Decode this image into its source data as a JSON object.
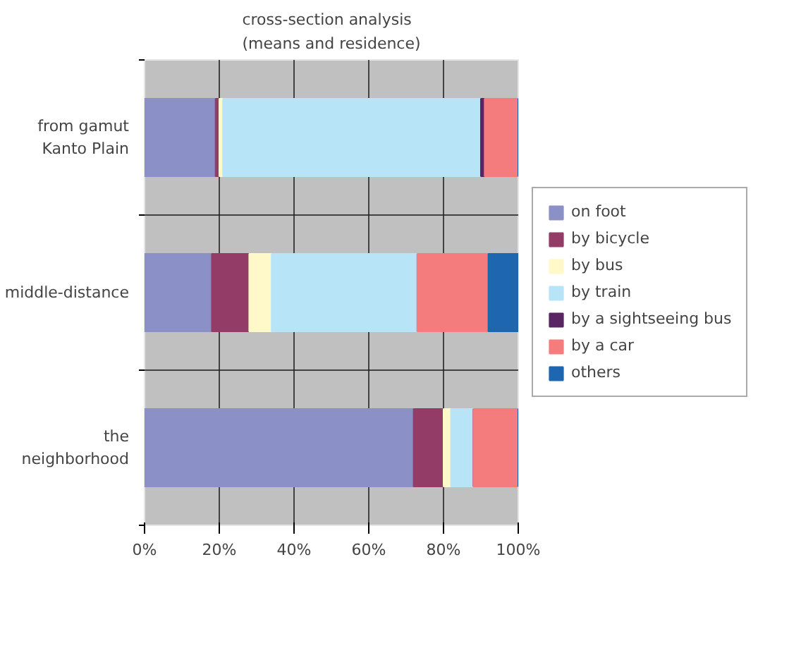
{
  "chart_data": {
    "type": "bar",
    "orientation": "horizontal",
    "stacked": true,
    "title": "cross-section analysis\n(means and residence)",
    "categories": [
      "from gamut\nKanto Plain",
      "middle-distance",
      "the\nneighborhood"
    ],
    "series": [
      {
        "name": "on foot",
        "color": "#8b91c7",
        "values": [
          19,
          18,
          72
        ]
      },
      {
        "name": "by bicycle",
        "color": "#943c68",
        "values": [
          1,
          10,
          8
        ]
      },
      {
        "name": "by bus",
        "color": "#fff8c8",
        "values": [
          1,
          6,
          2
        ]
      },
      {
        "name": "by train",
        "color": "#b8e4f8",
        "values": [
          69,
          39,
          6
        ]
      },
      {
        "name": "by a sightseeing bus",
        "color": "#5a2563",
        "values": [
          1,
          0,
          0
        ]
      },
      {
        "name": "by a car",
        "color": "#f47c7c",
        "values": [
          9,
          19,
          12
        ]
      },
      {
        "name": "others",
        "color": "#1f66b0",
        "values": [
          0,
          8,
          0
        ]
      }
    ],
    "xlim": [
      0,
      100
    ],
    "xticks": [
      {
        "value": 0,
        "label": "0%"
      },
      {
        "value": 20,
        "label": "20%"
      },
      {
        "value": 40,
        "label": "40%"
      },
      {
        "value": 60,
        "label": "60%"
      },
      {
        "value": 80,
        "label": "80%"
      },
      {
        "value": 100,
        "label": "100%"
      }
    ],
    "grid": true,
    "legend": "right"
  }
}
